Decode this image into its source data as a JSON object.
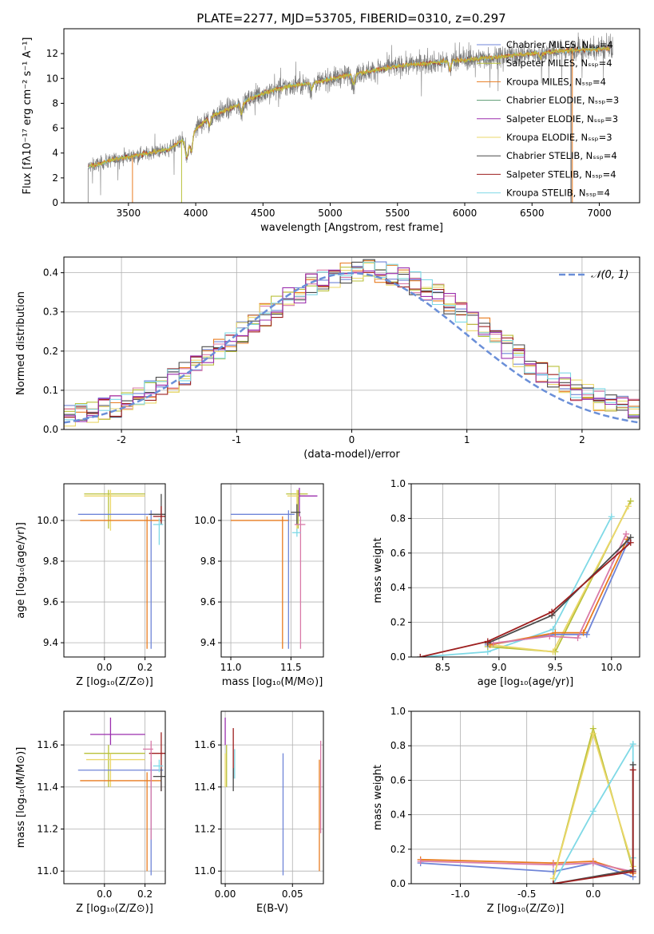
{
  "figure": {
    "title": "PLATE=2277, MJD=53705, FIBERID=0310, z=0.297"
  },
  "palette": [
    "#6f85d8",
    "#e87b1f",
    "#d97aa8",
    "#cf9a1c",
    "#b9c13a",
    "#ebd76a",
    "#4a4a4a",
    "#9d1f1f",
    "#7fd9e6",
    "#9b2fae"
  ],
  "chart_data": [
    {
      "id": "spectrum",
      "type": "line",
      "title": "PLATE=2277, MJD=53705, FIBERID=0310, z=0.297",
      "xlabel": "wavelength [Angstrom, rest frame]",
      "ylabel": "Flux [fλ10⁻¹⁷ erg cm⁻² s⁻¹ A⁻¹]",
      "xlim": [
        3020,
        7300
      ],
      "ylim": [
        0,
        14
      ],
      "xticks": [
        3500,
        4000,
        4500,
        5000,
        5500,
        6000,
        6500,
        7000
      ],
      "yticks": [
        0,
        2,
        4,
        6,
        8,
        10,
        12
      ],
      "grid": false,
      "legend_position": "top-right",
      "legend": [
        {
          "label": "Chabrier MILES, Nₛₛₚ=4",
          "color": "#6f85d8"
        },
        {
          "label": "Salpeter MILES, Nₛₛₚ=4",
          "color": "#b9c13a"
        },
        {
          "label": "Kroupa MILES, Nₛₛₚ=4",
          "color": "#e87b1f"
        },
        {
          "label": "Chabrier ELODIE, Nₛₛₚ=3",
          "color": "#5a9a70"
        },
        {
          "label": "Salpeter ELODIE, Nₛₛₚ=3",
          "color": "#9b2fae"
        },
        {
          "label": "Kroupa ELODIE, Nₛₛₚ=3",
          "color": "#ebd76a"
        },
        {
          "label": "Chabrier STELIB, Nₛₛₚ=4",
          "color": "#4a4a4a"
        },
        {
          "label": "Salpeter STELIB, Nₛₛₚ=4",
          "color": "#9d1f1f"
        },
        {
          "label": "Kroupa STELIB, Nₛₛₚ=4",
          "color": "#7fd9e6"
        }
      ],
      "continuum": [
        [
          3200,
          2.9
        ],
        [
          3400,
          3.5
        ],
        [
          3600,
          3.9
        ],
        [
          3800,
          4.3
        ],
        [
          3950,
          5.4
        ],
        [
          4100,
          6.9
        ],
        [
          4300,
          7.8
        ],
        [
          4500,
          8.8
        ],
        [
          4700,
          9.4
        ],
        [
          4900,
          9.7
        ],
        [
          5100,
          10.2
        ],
        [
          5300,
          10.6
        ],
        [
          5500,
          11.0
        ],
        [
          5700,
          11.2
        ],
        [
          5900,
          11.4
        ],
        [
          6100,
          11.6
        ],
        [
          6300,
          11.8
        ],
        [
          6500,
          12.0
        ],
        [
          6700,
          12.2
        ],
        [
          6900,
          12.3
        ],
        [
          7080,
          12.4
        ]
      ],
      "data_range": [
        3200,
        7100
      ],
      "model_range": [
        3200,
        7080
      ]
    },
    {
      "id": "residuals",
      "type": "histogram",
      "xlabel": "(data-model)/error",
      "ylabel": "Normed distribution",
      "xlim": [
        -2.5,
        2.5
      ],
      "ylim": [
        0,
        0.44
      ],
      "xticks": [
        -2,
        -1,
        0,
        1,
        2
      ],
      "yticks": [
        0.0,
        0.1,
        0.2,
        0.3,
        0.4
      ],
      "grid": true,
      "legend_position": "top-right",
      "reference_curve": {
        "label": "𝒩(0, 1)",
        "mean": 0,
        "sigma": 1,
        "color": "#6a8fd8"
      },
      "bins": {
        "start": -2.5,
        "width": 0.1,
        "count": 50
      },
      "series_colors": [
        "#6f85d8",
        "#e87b1f",
        "#d97aa8",
        "#b9c13a",
        "#ebd76a",
        "#4a4a4a",
        "#9d1f1f",
        "#7fd9e6",
        "#9b2fae"
      ],
      "peak_shift": 0.12,
      "peak_value": 0.39
    },
    {
      "id": "age-vs-Z",
      "type": "errorbar",
      "xlabel": "Z [log₁₀(Z/Z⊙)]",
      "ylabel": "age  [log₁₀(age/yr)]",
      "xlim": [
        -0.2,
        0.3
      ],
      "ylim": [
        9.33,
        10.18
      ],
      "xticks": [
        0.0,
        0.2
      ],
      "yticks": [
        9.4,
        9.6,
        9.8,
        10.0
      ],
      "grid": true,
      "points": [
        {
          "x": 0.02,
          "xerr": [
            0.12,
            0.18
          ],
          "y": 10.13,
          "yerr": [
            0.17,
            0.02
          ],
          "color": "#b9c13a"
        },
        {
          "x": 0.03,
          "xerr": [
            0.13,
            0.17
          ],
          "y": 10.12,
          "yerr": [
            0.17,
            0.03
          ],
          "color": "#ebd76a"
        },
        {
          "x": 0.23,
          "xerr": [
            0.36,
            0.06
          ],
          "y": 10.03,
          "yerr": [
            0.66,
            0.02
          ],
          "color": "#6f85d8"
        },
        {
          "x": 0.21,
          "xerr": [
            0.33,
            0.07
          ],
          "y": 10.0,
          "yerr": [
            0.63,
            0.02
          ],
          "color": "#e87b1f"
        },
        {
          "x": 0.28,
          "xerr": [
            0.06,
            0.02
          ],
          "y": 10.03,
          "yerr": [
            0.05,
            0.1
          ],
          "color": "#4a4a4a"
        },
        {
          "x": 0.27,
          "xerr": [
            0.03,
            0.02
          ],
          "y": 9.98,
          "yerr": [
            0.1,
            0.03
          ],
          "color": "#7fd9e6"
        },
        {
          "x": 0.28,
          "xerr": [
            0.04,
            0.02
          ],
          "y": 10.02,
          "yerr": [
            0.03,
            0.05
          ],
          "color": "#9d1f1f"
        }
      ]
    },
    {
      "id": "age-vs-mass",
      "type": "errorbar",
      "xlabel": "mass [log₁₀(M/M⊙)]",
      "ylabel": "",
      "xlim": [
        10.92,
        11.77
      ],
      "ylim": [
        9.33,
        10.18
      ],
      "xticks": [
        11.0,
        11.5
      ],
      "yticks": [
        9.4,
        9.6,
        9.8,
        10.0
      ],
      "grid": true,
      "points": [
        {
          "x": 11.48,
          "xerr": [
            0.48,
            0.05
          ],
          "y": 10.03,
          "yerr": [
            0.66,
            0.02
          ],
          "color": "#6f85d8"
        },
        {
          "x": 11.43,
          "xerr": [
            0.43,
            0.05
          ],
          "y": 10.0,
          "yerr": [
            0.63,
            0.02
          ],
          "color": "#e87b1f"
        },
        {
          "x": 11.56,
          "xerr": [
            0.1,
            0.08
          ],
          "y": 10.13,
          "yerr": [
            0.17,
            0.02
          ],
          "color": "#b9c13a"
        },
        {
          "x": 11.55,
          "xerr": [
            0.08,
            0.07
          ],
          "y": 10.12,
          "yerr": [
            0.17,
            0.03
          ],
          "color": "#ebd76a"
        },
        {
          "x": 11.57,
          "xerr": [
            0.0,
            0.15
          ],
          "y": 10.12,
          "yerr": [
            0.1,
            0.04
          ],
          "color": "#9b2fae"
        },
        {
          "x": 11.55,
          "xerr": [
            0.05,
            0.03
          ],
          "y": 10.04,
          "yerr": [
            0.06,
            0.04
          ],
          "color": "#4a4a4a"
        },
        {
          "x": 11.58,
          "xerr": [
            0.05,
            0.04
          ],
          "y": 9.98,
          "yerr": [
            0.61,
            0.04
          ],
          "color": "#d97aa8"
        },
        {
          "x": 11.55,
          "xerr": [
            0.04,
            0.03
          ],
          "y": 9.94,
          "yerr": [
            0.02,
            0.02
          ],
          "color": "#7fd9e6"
        }
      ]
    },
    {
      "id": "massweight-vs-age",
      "type": "line",
      "xlabel": "age  [log₁₀(age/yr)]",
      "ylabel": "mass weight",
      "xlim": [
        8.22,
        10.25
      ],
      "ylim": [
        0,
        1.0
      ],
      "xticks": [
        8.5,
        9.0,
        9.5,
        10.0
      ],
      "yticks": [
        0.0,
        0.2,
        0.4,
        0.6,
        0.8,
        1.0
      ],
      "grid": true,
      "series": [
        {
          "color": "#7fd9e6",
          "x": [
            8.3,
            8.9,
            9.48,
            10.0
          ],
          "y": [
            0.0,
            0.03,
            0.16,
            0.81
          ]
        },
        {
          "color": "#b9c13a",
          "x": [
            8.9,
            9.5,
            10.17
          ],
          "y": [
            0.06,
            0.03,
            0.9
          ]
        },
        {
          "color": "#ebd76a",
          "x": [
            8.92,
            9.48,
            10.15
          ],
          "y": [
            0.07,
            0.03,
            0.87
          ]
        },
        {
          "color": "#6f85d8",
          "x": [
            8.9,
            9.5,
            9.78,
            10.15
          ],
          "y": [
            0.07,
            0.13,
            0.13,
            0.67
          ]
        },
        {
          "color": "#e87b1f",
          "x": [
            8.92,
            9.5,
            9.75,
            10.14
          ],
          "y": [
            0.07,
            0.14,
            0.14,
            0.68
          ]
        },
        {
          "color": "#d97aa8",
          "x": [
            8.95,
            9.45,
            9.7,
            10.13
          ],
          "y": [
            0.08,
            0.12,
            0.11,
            0.71
          ]
        },
        {
          "color": "#4a4a4a",
          "x": [
            8.9,
            9.47,
            10.17
          ],
          "y": [
            0.08,
            0.24,
            0.69
          ]
        },
        {
          "color": "#9d1f1f",
          "x": [
            8.3,
            8.9,
            9.47,
            10.17
          ],
          "y": [
            0.0,
            0.09,
            0.26,
            0.66
          ]
        }
      ]
    },
    {
      "id": "mass-vs-Z",
      "type": "errorbar",
      "xlabel": "Z [log₁₀(Z/Z⊙)]",
      "ylabel": "mass [log₁₀(M/M⊙)]",
      "xlim": [
        -0.2,
        0.3
      ],
      "ylim": [
        10.94,
        11.76
      ],
      "xticks": [
        0.0,
        0.2
      ],
      "yticks": [
        11.0,
        11.2,
        11.4,
        11.6
      ],
      "grid": true,
      "points": [
        {
          "x": 0.03,
          "xerr": [
            0.1,
            0.17
          ],
          "y": 11.65,
          "yerr": [
            0.05,
            0.08
          ],
          "color": "#9b2fae"
        },
        {
          "x": 0.02,
          "xerr": [
            0.12,
            0.18
          ],
          "y": 11.56,
          "yerr": [
            0.16,
            0.04
          ],
          "color": "#b9c13a"
        },
        {
          "x": 0.03,
          "xerr": [
            0.12,
            0.17
          ],
          "y": 11.53,
          "yerr": [
            0.13,
            0.03
          ],
          "color": "#ebd76a"
        },
        {
          "x": 0.23,
          "xerr": [
            0.36,
            0.06
          ],
          "y": 11.48,
          "yerr": [
            0.5,
            0.04
          ],
          "color": "#6f85d8"
        },
        {
          "x": 0.21,
          "xerr": [
            0.33,
            0.07
          ],
          "y": 11.43,
          "yerr": [
            0.43,
            0.04
          ],
          "color": "#e87b1f"
        },
        {
          "x": 0.28,
          "xerr": [
            0.06,
            0.02
          ],
          "y": 11.56,
          "yerr": [
            0.18,
            0.1
          ],
          "color": "#9d1f1f"
        },
        {
          "x": 0.28,
          "xerr": [
            0.04,
            0.02
          ],
          "y": 11.45,
          "yerr": [
            0.07,
            0.04
          ],
          "color": "#4a4a4a"
        },
        {
          "x": 0.27,
          "xerr": [
            0.03,
            0.02
          ],
          "y": 11.5,
          "yerr": [
            0.03,
            0.03
          ],
          "color": "#7fd9e6"
        },
        {
          "x": 0.23,
          "xerr": [
            0.04,
            0.01
          ],
          "y": 11.58,
          "yerr": [
            0.43,
            0.04
          ],
          "color": "#d97aa8"
        }
      ]
    },
    {
      "id": "mass-vs-EBV",
      "type": "errorbar",
      "xlabel": "E(B-V)",
      "ylabel": "",
      "xlim": [
        -0.003,
        0.073
      ],
      "ylim": [
        10.94,
        11.76
      ],
      "xticks": [
        0.0,
        0.05
      ],
      "yticks": [
        11.0,
        11.2,
        11.4,
        11.6
      ],
      "grid": true,
      "points": [
        {
          "x": 0.0,
          "y": 11.65,
          "yerr": [
            0.05,
            0.08
          ],
          "color": "#9b2fae"
        },
        {
          "x": 0.0,
          "y": 11.53,
          "yerr": [
            0.13,
            0.03
          ],
          "color": "#ebd76a"
        },
        {
          "x": 0.001,
          "y": 11.56,
          "yerr": [
            0.16,
            0.04
          ],
          "color": "#b9c13a"
        },
        {
          "x": 0.006,
          "y": 11.56,
          "yerr": [
            0.12,
            0.12
          ],
          "color": "#9d1f1f"
        },
        {
          "x": 0.006,
          "y": 11.45,
          "yerr": [
            0.07,
            0.04
          ],
          "color": "#4a4a4a"
        },
        {
          "x": 0.007,
          "y": 11.5,
          "yerr": [
            0.06,
            0.08
          ],
          "color": "#7fd9e6"
        },
        {
          "x": 0.043,
          "y": 11.48,
          "yerr": [
            0.5,
            0.08
          ],
          "color": "#6f85d8"
        },
        {
          "x": 0.07,
          "y": 11.43,
          "yerr": [
            0.43,
            0.1
          ],
          "color": "#e87b1f"
        },
        {
          "x": 0.071,
          "y": 11.58,
          "yerr": [
            0.4,
            0.04
          ],
          "color": "#d97aa8"
        }
      ]
    },
    {
      "id": "massweight-vs-Z",
      "type": "line",
      "xlabel": "Z [log₁₀(Z/Z⊙)]",
      "ylabel": "mass weight",
      "xlim": [
        -1.37,
        0.35
      ],
      "ylim": [
        0,
        1.0
      ],
      "xticks": [
        -1.0,
        -0.5,
        0.0
      ],
      "yticks": [
        0.0,
        0.2,
        0.4,
        0.6,
        0.8,
        1.0
      ],
      "grid": true,
      "series": [
        {
          "color": "#6f85d8",
          "x": [
            -1.3,
            -0.3,
            0.0,
            0.3
          ],
          "y": [
            0.12,
            0.07,
            0.12,
            0.04
          ]
        },
        {
          "color": "#e87b1f",
          "x": [
            -1.3,
            -0.3,
            0.0,
            0.3
          ],
          "y": [
            0.14,
            0.12,
            0.13,
            0.06
          ]
        },
        {
          "color": "#d97aa8",
          "x": [
            -1.3,
            -0.3,
            0.0,
            0.3
          ],
          "y": [
            0.13,
            0.11,
            0.12,
            0.07
          ]
        },
        {
          "color": "#b9c13a",
          "x": [
            -0.3,
            0.0,
            0.3
          ],
          "y": [
            0.03,
            0.9,
            0.08
          ]
        },
        {
          "color": "#ebd76a",
          "x": [
            -0.3,
            0.0,
            0.3
          ],
          "y": [
            0.03,
            0.87,
            0.1
          ]
        },
        {
          "color": "#7fd9e6",
          "x": [
            -0.3,
            0.0,
            0.3,
            0.3
          ],
          "y": [
            0.0,
            0.42,
            0.81,
            0.15
          ]
        },
        {
          "color": "#4a4a4a",
          "x": [
            -0.3,
            0.3,
            0.3
          ],
          "y": [
            0.0,
            0.08,
            0.69
          ]
        },
        {
          "color": "#9d1f1f",
          "x": [
            -0.3,
            0.3,
            0.3
          ],
          "y": [
            0.0,
            0.07,
            0.66
          ]
        }
      ]
    }
  ]
}
